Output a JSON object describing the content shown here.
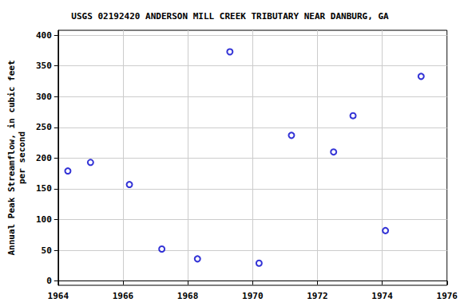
{
  "chart_data": {
    "type": "scatter",
    "title": "USGS 02192420 ANDERSON MILL CREEK TRIBUTARY NEAR DANBURG, GA",
    "y_label": "Annual Peak Streamflow, in cubic feet\nper second",
    "x": [
      1964.3,
      1965.0,
      1966.2,
      1967.2,
      1968.3,
      1969.3,
      1970.2,
      1971.2,
      1972.5,
      1973.1,
      1974.1,
      1975.2
    ],
    "values": [
      179,
      193,
      157,
      52,
      36,
      373,
      29,
      237,
      210,
      269,
      82,
      333
    ],
    "color": "#0000cc",
    "marker": "open_circle",
    "xlim": [
      1964,
      1976
    ],
    "xticks": [
      1964,
      1966,
      1968,
      1970,
      1972,
      1974,
      1976
    ],
    "ylim": [
      -7,
      408
    ],
    "yticks": [
      0,
      50,
      100,
      150,
      200,
      250,
      300,
      350,
      400
    ],
    "grid": true
  }
}
